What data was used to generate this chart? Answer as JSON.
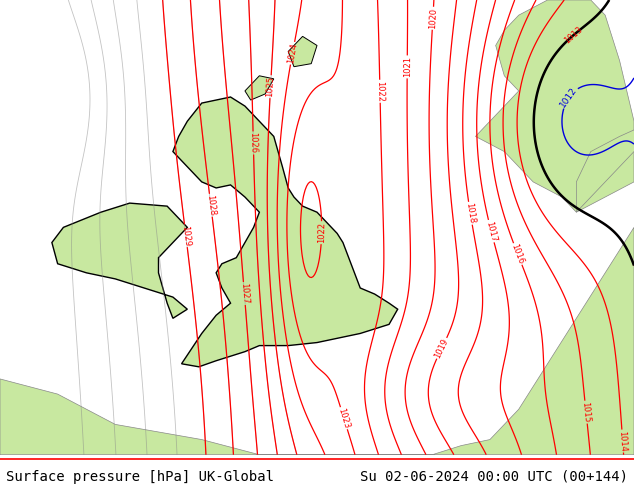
{
  "title_left": "Surface pressure [hPa] UK-Global",
  "title_right": "Su 02-06-2024 00:00 UTC (00+144)",
  "land_green": "#c8e8a0",
  "sea_gray": "#b8c8b8",
  "ocean_gray": "#c0c8c0",
  "contour_red": "#ff0000",
  "contour_blue": "#0000dd",
  "contour_black": "#000000",
  "contour_gray": "#888888",
  "fig_width": 6.34,
  "fig_height": 4.9,
  "dpi": 100,
  "footer_fontsize": 10,
  "xlim": [
    -12,
    10
  ],
  "ylim": [
    47,
    62
  ],
  "footer_bg": "#ffffff"
}
